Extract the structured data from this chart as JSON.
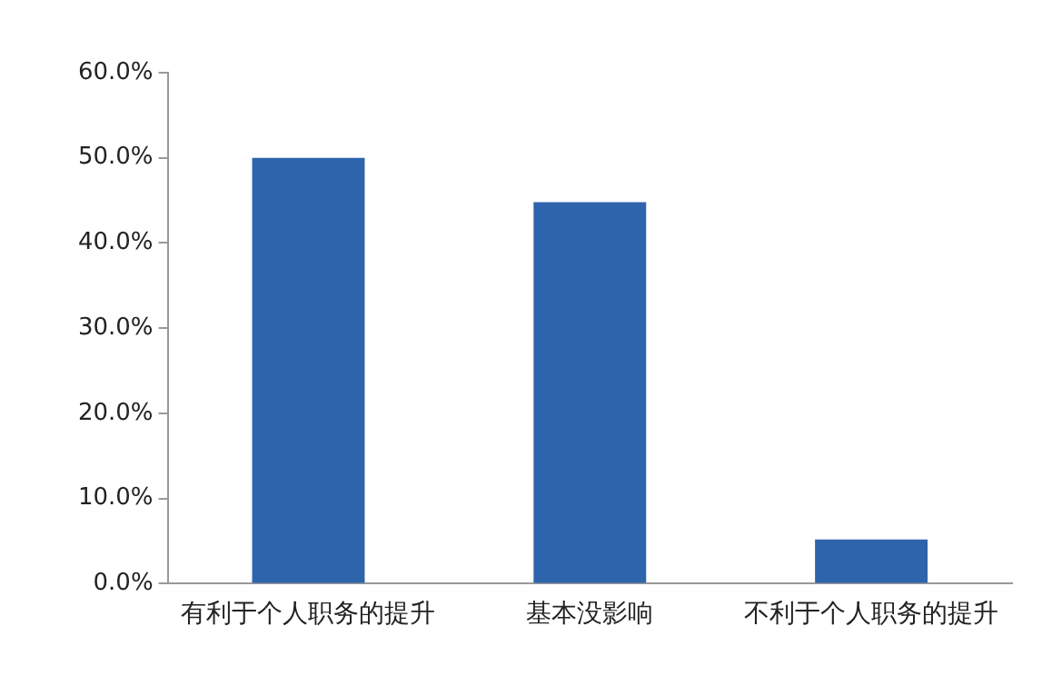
{
  "chart_data": {
    "type": "bar",
    "categories": [
      "有利于个人职务的提升",
      "基本没影响",
      "不利于个人职务的提升"
    ],
    "values": [
      50.0,
      44.8,
      5.2
    ],
    "color": "#2e64ab",
    "ylim": [
      0,
      60
    ],
    "yticks": [
      {
        "value": 0,
        "label": "0.0%"
      },
      {
        "value": 10,
        "label": "10.0%"
      },
      {
        "value": 20,
        "label": "20.0%"
      },
      {
        "value": 30,
        "label": "30.0%"
      },
      {
        "value": 40,
        "label": "40.0%"
      },
      {
        "value": 50,
        "label": "50.0%"
      },
      {
        "value": 60,
        "label": "60.0%"
      }
    ],
    "grid": false
  }
}
